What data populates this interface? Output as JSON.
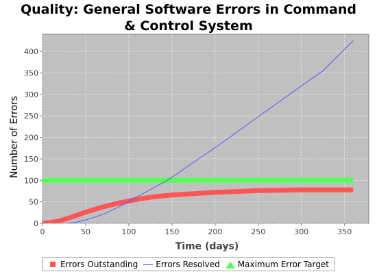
{
  "chart_data": {
    "type": "line",
    "title_lines": [
      "Quality: General Software Errors in Command",
      "& Control System"
    ],
    "xlabel": "Time (days)",
    "ylabel": "Number of Errors",
    "xlim": [
      0,
      378
    ],
    "ylim": [
      0,
      440
    ],
    "x_ticks": [
      0,
      50,
      100,
      150,
      200,
      250,
      300,
      350
    ],
    "y_ticks": [
      0,
      50,
      100,
      150,
      200,
      250,
      300,
      350,
      400
    ],
    "grid": true,
    "legend_position": "bottom",
    "plot_background": "#c0c0c0",
    "series": [
      {
        "name": "Errors Outstanding",
        "color": "#ff5555",
        "style": "thick",
        "x": [
          0,
          10,
          20,
          30,
          40,
          50,
          60,
          70,
          80,
          90,
          100,
          110,
          120,
          130,
          140,
          150,
          175,
          200,
          225,
          250,
          275,
          300,
          325,
          360
        ],
        "y": [
          0,
          2,
          6,
          12,
          19,
          26,
          32,
          38,
          43,
          48,
          52,
          56,
          59,
          62,
          64,
          66,
          69,
          72,
          74,
          76,
          77,
          78,
          78,
          78
        ]
      },
      {
        "name": "Errors Resolved",
        "color": "#5555ff",
        "style": "thin",
        "x": [
          0,
          10,
          20,
          30,
          40,
          50,
          60,
          70,
          80,
          90,
          100,
          110,
          120,
          130,
          140,
          150,
          175,
          200,
          225,
          250,
          275,
          300,
          325,
          360
        ],
        "y": [
          0,
          -1,
          -2,
          0,
          3,
          8,
          14,
          21,
          30,
          40,
          51,
          62,
          73,
          84,
          95,
          107,
          142,
          176,
          212,
          248,
          284,
          320,
          355,
          425
        ]
      },
      {
        "name": "Maximum Error Target",
        "color": "#55ff55",
        "style": "thick",
        "x": [
          0,
          360
        ],
        "y": [
          100,
          100
        ]
      }
    ]
  }
}
